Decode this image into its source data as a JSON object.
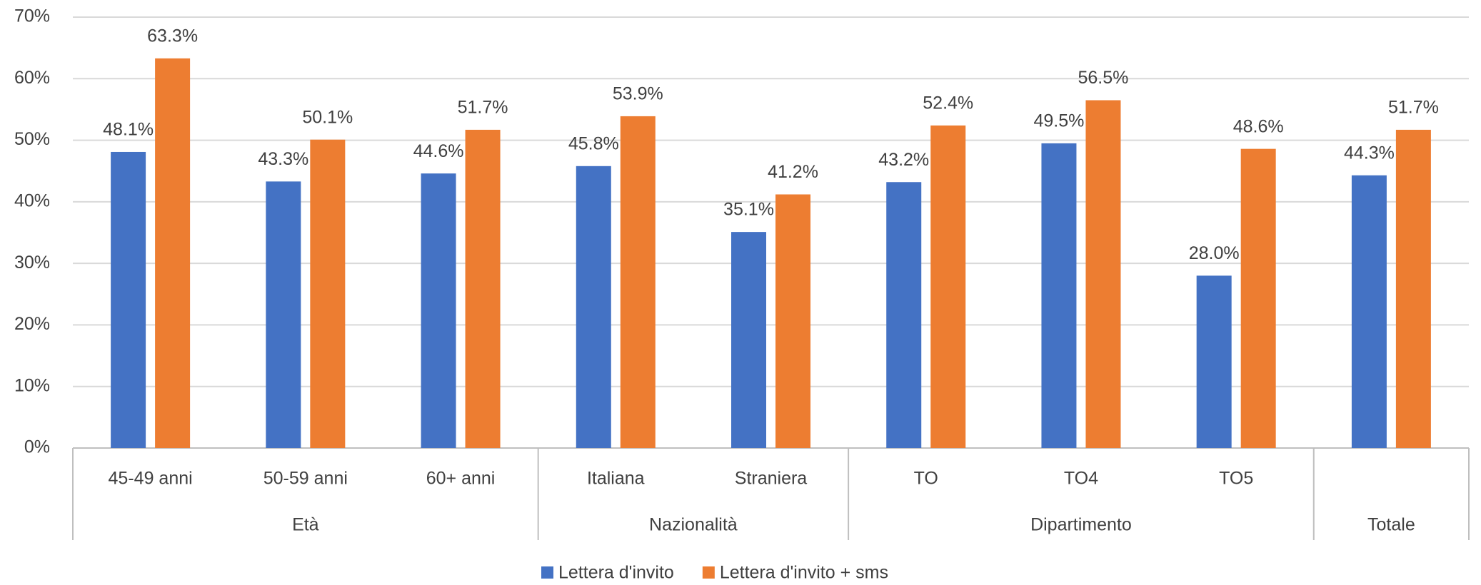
{
  "chart_data": {
    "type": "bar",
    "categories": [
      "45-49 anni",
      "50-59 anni",
      "60+ anni",
      "Italiana",
      "Straniera",
      "TO",
      "TO4",
      "TO5",
      null
    ],
    "category_groups": [
      "Età",
      "Età",
      "Età",
      "Nazionalità",
      "Nazionalità",
      "Dipartimento",
      "Dipartimento",
      "Dipartimento",
      "Totale"
    ],
    "series": [
      {
        "name": "Lettera d'invito",
        "color": "#4472c4",
        "values": [
          48.1,
          43.3,
          44.6,
          45.8,
          35.1,
          43.2,
          49.5,
          28.0,
          44.3
        ],
        "value_labels": [
          "48.1%",
          "43.3%",
          "44.6%",
          "45.8%",
          "35.1%",
          "43.2%",
          "49.5%",
          "28.0%",
          "44.3%"
        ]
      },
      {
        "name": "Lettera d'invito + sms",
        "color": "#ed7d31",
        "values": [
          63.3,
          50.1,
          51.7,
          53.9,
          41.2,
          52.4,
          56.5,
          48.6,
          51.7
        ],
        "value_labels": [
          "63.3%",
          "50.1%",
          "51.7%",
          "53.9%",
          "41.2%",
          "52.4%",
          "56.5%",
          "48.6%",
          "51.7%"
        ]
      }
    ],
    "ylim": [
      0,
      70
    ],
    "yticks": [
      {
        "value": 0,
        "label": "0%"
      },
      {
        "value": 10,
        "label": "10%"
      },
      {
        "value": 20,
        "label": "20%"
      },
      {
        "value": 30,
        "label": "30%"
      },
      {
        "value": 40,
        "label": "40%"
      },
      {
        "value": 50,
        "label": "50%"
      },
      {
        "value": 60,
        "label": "60%"
      },
      {
        "value": 70,
        "label": "70%"
      }
    ],
    "grid": true,
    "legend": "bottom"
  }
}
